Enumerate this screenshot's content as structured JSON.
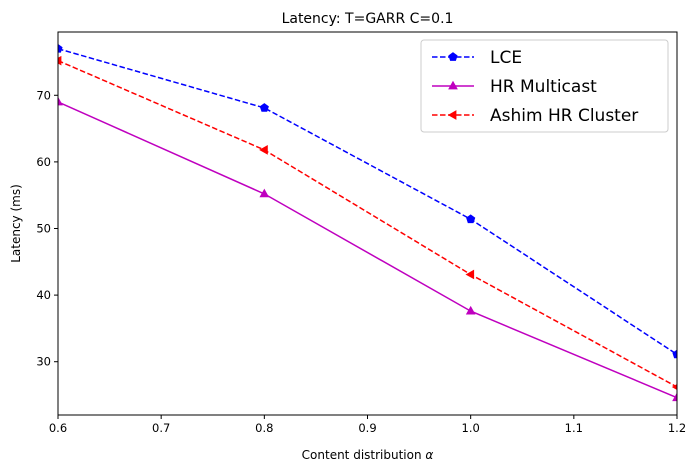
{
  "chart_data": {
    "type": "line",
    "title": "Latency: T=GARR C=0.1",
    "xlabel": "Content distribution",
    "xlabel_symbol": "α",
    "ylabel": "Latency (ms)",
    "xlim": [
      0.6,
      1.2
    ],
    "ylim": [
      22,
      79.5
    ],
    "xticks": [
      0.6,
      0.7,
      0.8,
      0.9,
      1.0,
      1.1,
      1.2
    ],
    "xtick_labels": [
      "0.6",
      "0.7",
      "0.8",
      "0.9",
      "1.0",
      "1.1",
      "1.2"
    ],
    "yticks": [
      30,
      40,
      50,
      60,
      70
    ],
    "ytick_labels": [
      "30",
      "40",
      "50",
      "60",
      "70"
    ],
    "grid": false,
    "legend_position": "top-right",
    "x": [
      0.6,
      0.8,
      1.0,
      1.2
    ],
    "series": [
      {
        "name": "LCE",
        "values": [
          77.0,
          68.1,
          51.4,
          31.1
        ],
        "color": "#0000ff",
        "dash": "dashed",
        "marker": "pentagon"
      },
      {
        "name": "HR Multicast",
        "values": [
          69.0,
          55.2,
          37.6,
          24.6
        ],
        "color": "#bf00bf",
        "dash": "solid",
        "marker": "triangle-up"
      },
      {
        "name": "Ashim HR Cluster",
        "values": [
          75.2,
          61.8,
          43.1,
          26.2
        ],
        "color": "#ff0000",
        "dash": "dashed",
        "marker": "triangle-left"
      }
    ]
  }
}
